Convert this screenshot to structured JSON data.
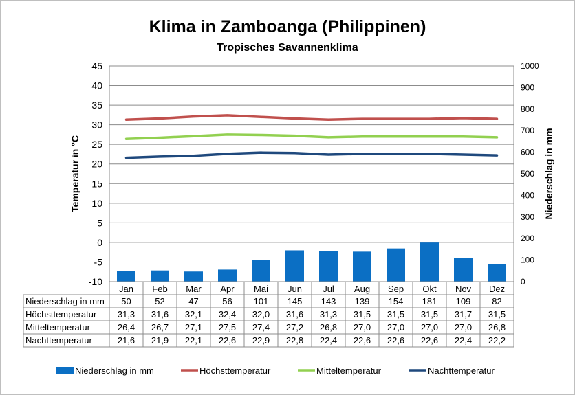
{
  "title": "Klima in Zamboanga (Philippinen)",
  "subtitle": "Tropisches Savannenklima",
  "chart_data": {
    "type": "bar",
    "categories": [
      "Jan",
      "Feb",
      "Mar",
      "Apr",
      "Mai",
      "Jun",
      "Jul",
      "Aug",
      "Sep",
      "Okt",
      "Nov",
      "Dez"
    ],
    "y_left": {
      "label": "Temperatur in °C",
      "lim": [
        -10,
        45
      ],
      "ticks": [
        "45",
        "40",
        "35",
        "30",
        "25",
        "20",
        "15",
        "10",
        "5",
        "0",
        "-5",
        "-10"
      ]
    },
    "y_right": {
      "label": "Niederschlag in mm",
      "lim": [
        0,
        1000
      ],
      "ticks": [
        "1000",
        "900",
        "800",
        "700",
        "600",
        "500",
        "400",
        "300",
        "200",
        "100",
        "0"
      ]
    },
    "series": [
      {
        "name": "Niederschlag in mm",
        "type": "bar",
        "axis": "right",
        "color": "#0b6fc4",
        "values": [
          50,
          52,
          47,
          56,
          101,
          145,
          143,
          139,
          154,
          181,
          109,
          82
        ],
        "labels": [
          "50",
          "52",
          "47",
          "56",
          "101",
          "145",
          "143",
          "139",
          "154",
          "181",
          "109",
          "82"
        ]
      },
      {
        "name": "Höchsttemperatur",
        "type": "line",
        "axis": "left",
        "color": "#c0504d",
        "values": [
          31.3,
          31.6,
          32.1,
          32.4,
          32.0,
          31.6,
          31.3,
          31.5,
          31.5,
          31.5,
          31.7,
          31.5
        ],
        "labels": [
          "31,3",
          "31,6",
          "32,1",
          "32,4",
          "32,0",
          "31,6",
          "31,3",
          "31,5",
          "31,5",
          "31,5",
          "31,7",
          "31,5"
        ]
      },
      {
        "name": "Mitteltemperatur",
        "type": "line",
        "axis": "left",
        "color": "#92d050",
        "values": [
          26.4,
          26.7,
          27.1,
          27.5,
          27.4,
          27.2,
          26.8,
          27.0,
          27.0,
          27.0,
          27.0,
          26.8
        ],
        "labels": [
          "26,4",
          "26,7",
          "27,1",
          "27,5",
          "27,4",
          "27,2",
          "26,8",
          "27,0",
          "27,0",
          "27,0",
          "27,0",
          "26,8"
        ]
      },
      {
        "name": "Nachttemperatur",
        "type": "line",
        "axis": "left",
        "color": "#1f497d",
        "values": [
          21.6,
          21.9,
          22.1,
          22.6,
          22.9,
          22.8,
          22.4,
          22.6,
          22.6,
          22.6,
          22.4,
          22.2
        ],
        "labels": [
          "21,6",
          "21,9",
          "22,1",
          "22,6",
          "22,9",
          "22,8",
          "22,4",
          "22,6",
          "22,6",
          "22,6",
          "22,4",
          "22,2"
        ]
      }
    ],
    "grid": true,
    "data_table": true,
    "legend_position": "bottom"
  }
}
